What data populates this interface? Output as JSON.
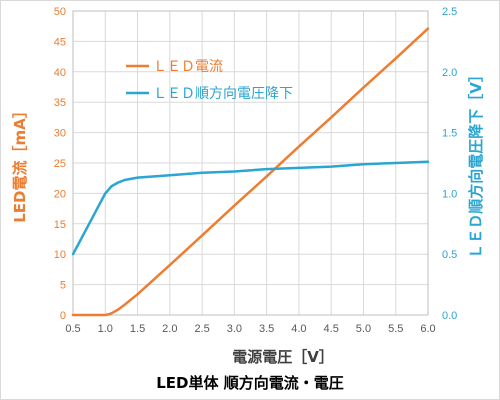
{
  "chart_data": {
    "type": "line",
    "title": "LED単体 順方向電流・電圧",
    "xlabel": "電源電圧［V］",
    "ylabel_left": "LED電流［mA］",
    "ylabel_right": "ＬＥＤ順方向電圧降下［V］",
    "xlim": [
      0.5,
      6.0
    ],
    "x_ticks": [
      "0.5",
      "1.0",
      "1.5",
      "2.0",
      "2.5",
      "3.0",
      "3.5",
      "4.0",
      "4.5",
      "5.0",
      "5.5",
      "6.0"
    ],
    "ylim_left": [
      0,
      50
    ],
    "y_left_ticks": [
      "0",
      "5",
      "10",
      "15",
      "20",
      "25",
      "30",
      "35",
      "40",
      "45",
      "50"
    ],
    "ylim_right": [
      0.0,
      2.5
    ],
    "y_right_ticks": [
      "0.0",
      "0.5",
      "1.0",
      "1.5",
      "2.0",
      "2.5"
    ],
    "grid": true,
    "legend_position": "top-left inside plot",
    "series": [
      {
        "name": "ＬＥＤ電流",
        "axis": "left",
        "color": "#ED7D31",
        "x": [
          0.5,
          0.9,
          1.0,
          1.05,
          1.1,
          1.2,
          1.3,
          1.5,
          2.0,
          2.5,
          3.0,
          3.5,
          4.0,
          4.5,
          5.0,
          5.5,
          6.0
        ],
        "y": [
          0,
          0,
          0,
          0.1,
          0.3,
          0.9,
          1.7,
          3.4,
          8.2,
          13.1,
          18.0,
          22.8,
          27.7,
          32.5,
          37.4,
          42.2,
          47.1
        ]
      },
      {
        "name": "ＬＥＤ順方向電圧降下",
        "axis": "right",
        "color": "#2BA5D1",
        "x": [
          0.5,
          0.6,
          0.7,
          0.8,
          0.9,
          1.0,
          1.1,
          1.2,
          1.3,
          1.5,
          2.0,
          2.5,
          3.0,
          3.5,
          4.0,
          4.5,
          5.0,
          5.5,
          6.0
        ],
        "y": [
          0.5,
          0.6,
          0.7,
          0.8,
          0.9,
          1.0,
          1.06,
          1.09,
          1.11,
          1.13,
          1.15,
          1.17,
          1.18,
          1.2,
          1.21,
          1.22,
          1.24,
          1.25,
          1.26
        ]
      }
    ]
  }
}
